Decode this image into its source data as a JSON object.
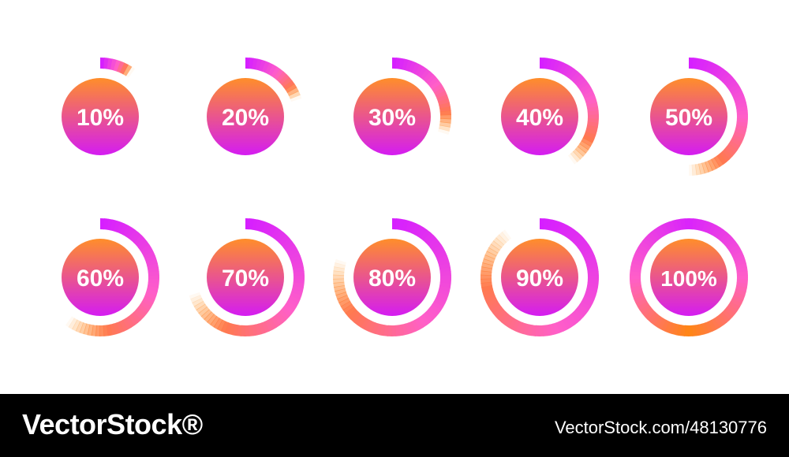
{
  "gauges": [
    {
      "label": "10%",
      "progress": 0.1
    },
    {
      "label": "20%",
      "progress": 0.2
    },
    {
      "label": "30%",
      "progress": 0.3
    },
    {
      "label": "40%",
      "progress": 0.4
    },
    {
      "label": "50%",
      "progress": 0.5
    },
    {
      "label": "60%",
      "progress": 0.6
    },
    {
      "label": "70%",
      "progress": 0.7
    },
    {
      "label": "80%",
      "progress": 0.8
    },
    {
      "label": "90%",
      "progress": 0.9
    },
    {
      "label": "100%",
      "progress": 1.0
    }
  ],
  "colors": {
    "orange": "#ff8a00",
    "pink": "#ff5fc8",
    "magenta": "#d61fff",
    "disc_top": "#ff8e2a",
    "disc_bottom": "#d41cf2",
    "label": "#ffffff"
  },
  "footer": {
    "brand": "VectorStock®",
    "stock_id": "VectorStock.com/48130776"
  }
}
